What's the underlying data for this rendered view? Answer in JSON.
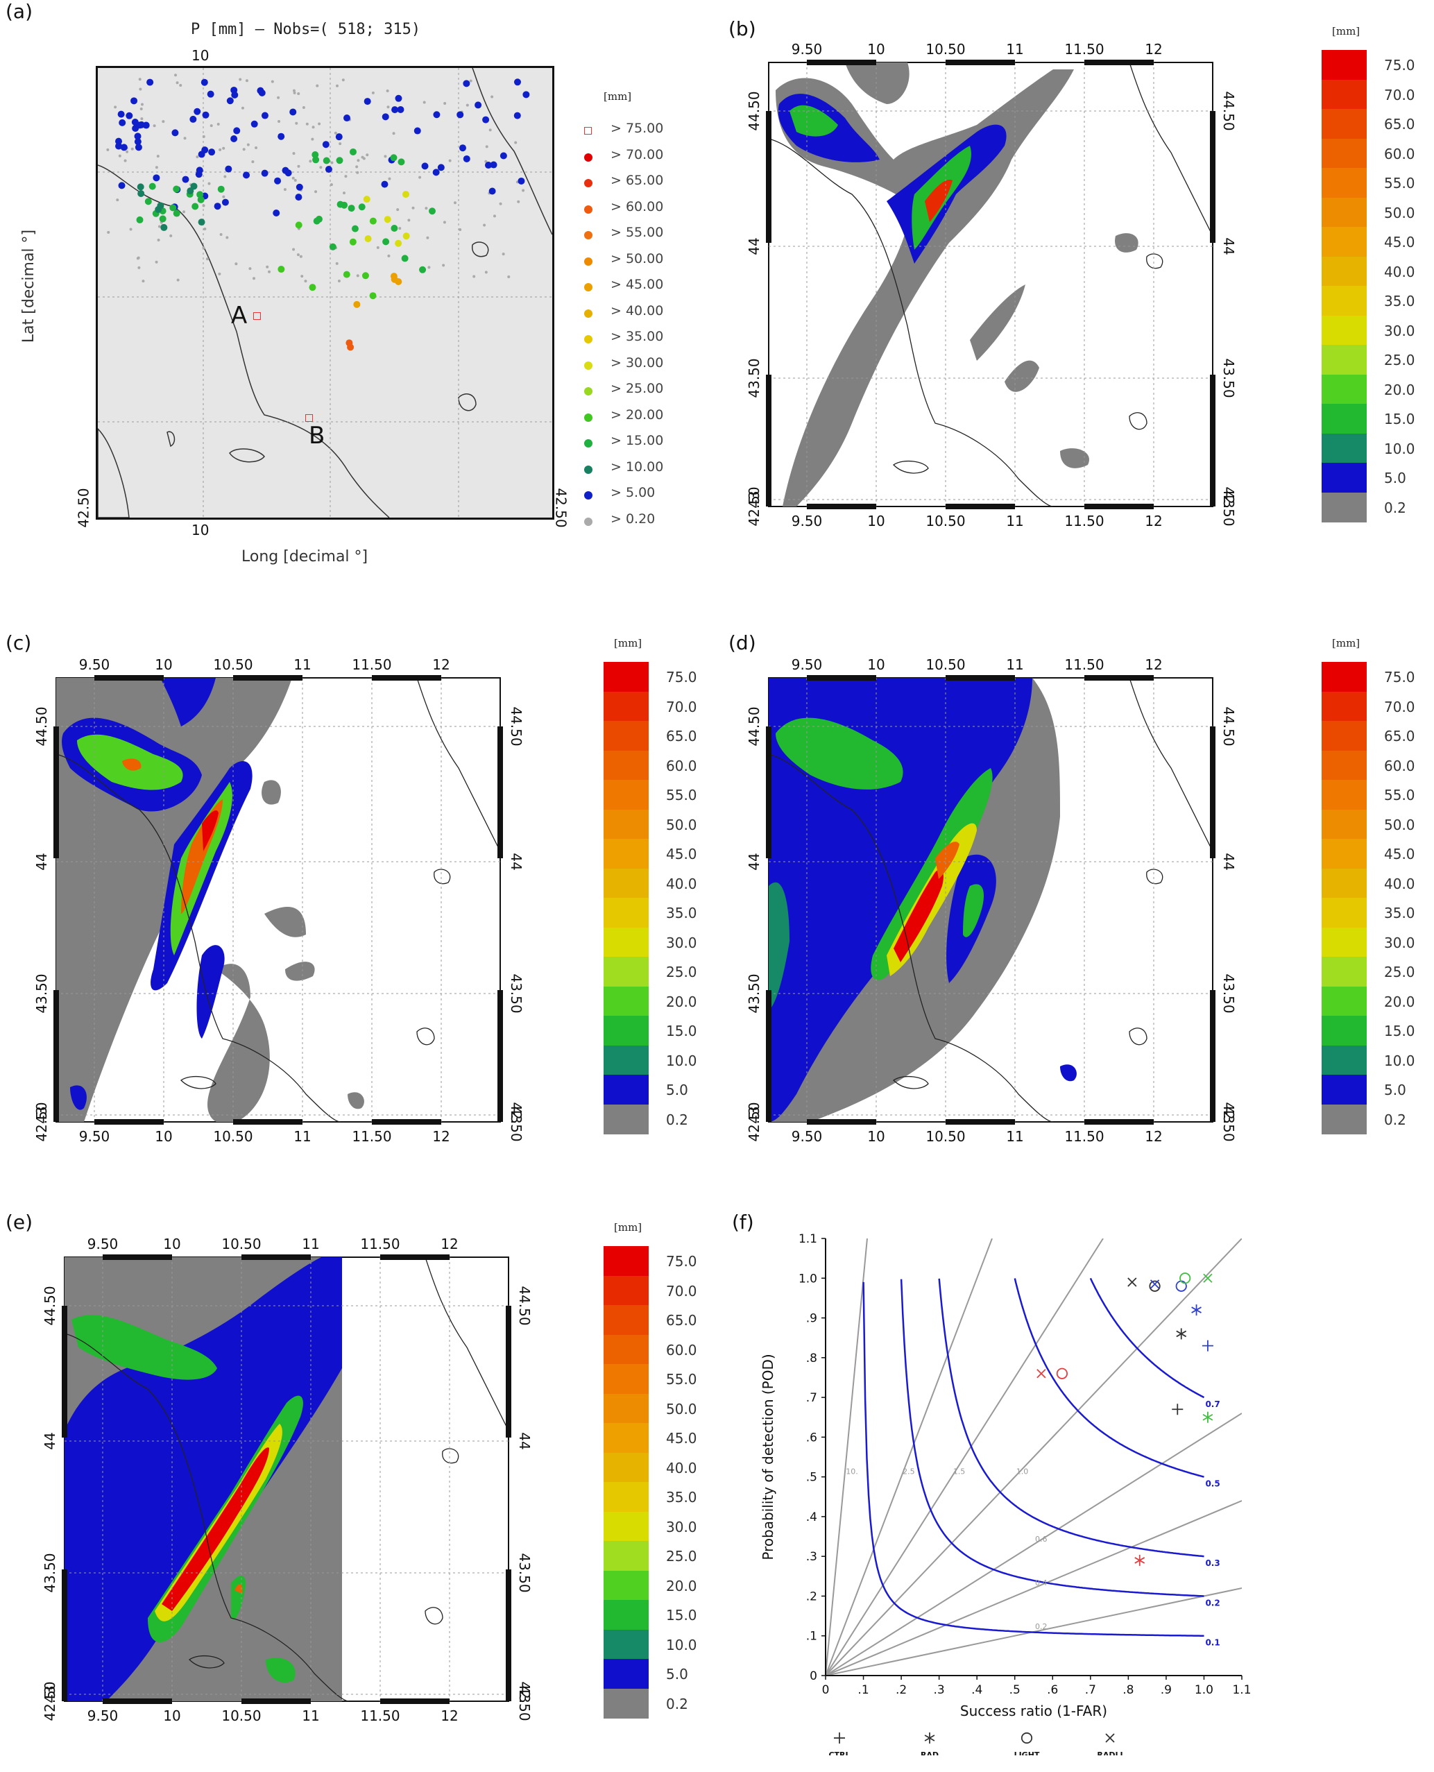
{
  "panels": {
    "a": {
      "letter": "(a)",
      "title": "P [mm] – Nobs=( 518; 315)",
      "xlabel": "Long [decimal °]",
      "ylabel": "Lat [decimal °]",
      "top_tick": "10",
      "bottom_tick": "10",
      "left_tick": "42.50",
      "right_tick": "42.50",
      "site_a": "A",
      "site_b": "B",
      "legend_unit": "[mm]",
      "legend": [
        {
          "label": ">  75.00",
          "color": "#e33",
          "marker": "square"
        },
        {
          "label": ">  70.00",
          "color": "#e00000",
          "marker": "dot"
        },
        {
          "label": ">  65.00",
          "color": "#e83010",
          "marker": "dot"
        },
        {
          "label": ">  60.00",
          "color": "#ee5a10",
          "marker": "dot"
        },
        {
          "label": ">  55.00",
          "color": "#ee7010",
          "marker": "dot"
        },
        {
          "label": ">  50.00",
          "color": "#ee8a00",
          "marker": "dot"
        },
        {
          "label": ">  45.00",
          "color": "#eca000",
          "marker": "dot"
        },
        {
          "label": ">  40.00",
          "color": "#e6b000",
          "marker": "dot"
        },
        {
          "label": ">  35.00",
          "color": "#e6c800",
          "marker": "dot"
        },
        {
          "label": ">  30.00",
          "color": "#d8dc10",
          "marker": "dot"
        },
        {
          "label": ">  25.00",
          "color": "#9ad820",
          "marker": "dot"
        },
        {
          "label": ">  20.00",
          "color": "#40c820",
          "marker": "dot"
        },
        {
          "label": ">  15.00",
          "color": "#20b040",
          "marker": "dot"
        },
        {
          "label": ">  10.00",
          "color": "#168060",
          "marker": "dot"
        },
        {
          "label": ">   5.00",
          "color": "#1020c8",
          "marker": "dot"
        },
        {
          "label": ">   0.20",
          "color": "#aaaaaa",
          "marker": "dot"
        }
      ]
    },
    "b": {
      "letter": "(b)"
    },
    "c": {
      "letter": "(c)"
    },
    "d": {
      "letter": "(d)"
    },
    "e": {
      "letter": "(e)"
    },
    "f": {
      "letter": "(f)"
    }
  },
  "map_ticks": {
    "lon": [
      "9.50",
      "10",
      "10.50",
      "11",
      "11.50",
      "12"
    ],
    "lat": [
      "44.50",
      "44",
      "43.50",
      "43",
      "42.50"
    ]
  },
  "colorbar": {
    "unit": "[mm]",
    "labels": [
      "75.0",
      "70.0",
      "65.0",
      "60.0",
      "55.0",
      "50.0",
      "45.0",
      "40.0",
      "35.0",
      "30.0",
      "25.0",
      "20.0",
      "15.0",
      "10.0",
      "5.0",
      "0.2"
    ],
    "colors": [
      "#e60000",
      "#e82a00",
      "#ea4a00",
      "#ec6200",
      "#ee7800",
      "#ee8c00",
      "#eea000",
      "#e6b400",
      "#e6c800",
      "#d8dc00",
      "#a0dc20",
      "#50d020",
      "#22b830",
      "#168a66",
      "#1010cc",
      "#808080"
    ]
  },
  "chart_data": [
    {
      "type": "scatter",
      "panel": "(f)",
      "title": "",
      "xlabel": "Success ratio (1-FAR)",
      "ylabel": "Probability of detection (POD)",
      "xlim": [
        0,
        1.1
      ],
      "ylim": [
        0,
        1.1
      ],
      "x_ticks": [
        "0",
        ".1",
        ".2",
        ".3",
        ".4",
        ".5",
        ".6",
        ".7",
        ".8",
        ".9",
        "1.0",
        "1.1"
      ],
      "y_ticks": [
        "0",
        ".1",
        ".2",
        ".3",
        ".4",
        ".5",
        ".6",
        ".7",
        ".8",
        ".9",
        "1.0",
        "1.1"
      ],
      "bias_lines": [
        {
          "bias": 10,
          "label": "10."
        },
        {
          "bias": 2.5,
          "label": "2.5"
        },
        {
          "bias": 1.5,
          "label": "1.5"
        },
        {
          "bias": 1.0,
          "label": "1.0"
        },
        {
          "bias": 0.6,
          "label": "0.6"
        },
        {
          "bias": 0.4,
          "label": "0.4"
        },
        {
          "bias": 0.2,
          "label": "0.2"
        }
      ],
      "csi_curves": [
        {
          "csi": 0.7,
          "label": "0.7"
        },
        {
          "csi": 0.5,
          "label": "0.5"
        },
        {
          "csi": 0.3,
          "label": "0.3"
        },
        {
          "csi": 0.2,
          "label": "0.2"
        },
        {
          "csi": 0.1,
          "label": "0.1"
        }
      ],
      "legend": [
        {
          "name": "CTRL",
          "marker": "plus"
        },
        {
          "name": "RAD",
          "marker": "asterisk"
        },
        {
          "name": "LIGHT",
          "marker": "circle"
        },
        {
          "name": "RADLI",
          "marker": "x"
        }
      ],
      "points": [
        {
          "marker": "x",
          "color": "#333333",
          "x": 0.81,
          "y": 0.99
        },
        {
          "marker": "circle",
          "color": "#333333",
          "x": 0.87,
          "y": 0.98
        },
        {
          "marker": "x",
          "color": "#3040d0",
          "x": 0.87,
          "y": 0.985
        },
        {
          "marker": "circle",
          "color": "#3040d0",
          "x": 0.94,
          "y": 0.98
        },
        {
          "marker": "circle",
          "color": "#40c040",
          "x": 0.95,
          "y": 1.0
        },
        {
          "marker": "x",
          "color": "#40c040",
          "x": 1.01,
          "y": 1.0
        },
        {
          "marker": "asterisk",
          "color": "#3040d0",
          "x": 0.98,
          "y": 0.92
        },
        {
          "marker": "asterisk",
          "color": "#333333",
          "x": 0.94,
          "y": 0.86
        },
        {
          "marker": "plus",
          "color": "#3040d0",
          "x": 1.01,
          "y": 0.83
        },
        {
          "marker": "x",
          "color": "#e04040",
          "x": 0.57,
          "y": 0.76
        },
        {
          "marker": "circle",
          "color": "#e04040",
          "x": 0.625,
          "y": 0.76
        },
        {
          "marker": "plus",
          "color": "#333333",
          "x": 0.93,
          "y": 0.67
        },
        {
          "marker": "asterisk",
          "color": "#40c040",
          "x": 1.01,
          "y": 0.65
        },
        {
          "marker": "asterisk",
          "color": "#e04040",
          "x": 0.83,
          "y": 0.29
        }
      ]
    }
  ]
}
